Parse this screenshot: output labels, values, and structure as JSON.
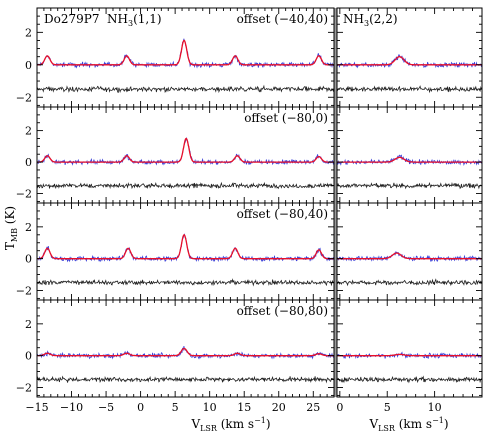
{
  "figure": {
    "source_label": "Do279P7",
    "ylabel_main": "T",
    "ylabel_sub": "MB",
    "ylabel_unit": " (K)",
    "xlabel_main": "V",
    "xlabel_sub": "LSR",
    "xlabel_unit": " (km s",
    "xlabel_exp": "−1",
    "xlabel_close": ")"
  },
  "colors": {
    "fit": "#e8102a",
    "data": "#3a3fd8",
    "residual": "#222222",
    "residual_tint": "#b03030",
    "divider": "#9a9a9a"
  },
  "chart_data": [
    {
      "type": "line",
      "panel": "offset (-40,40)",
      "column": "NH3(1,1)",
      "line_label": "NH3(1,1)",
      "annotation": "offset (−40,40)",
      "xlim": [
        -15,
        28
      ],
      "ylim": [
        -2.6,
        3.5
      ],
      "xticks": [
        -15,
        -10,
        -5,
        0,
        5,
        10,
        15,
        20,
        25
      ],
      "yticks": [
        -2,
        0,
        2
      ],
      "residual_offset": -1.5,
      "series": [
        {
          "values_kind": "gaussian_components",
          "components": [
            {
              "center": -13.5,
              "amplitude": 0.55,
              "fwhm": 0.9
            },
            {
              "center": -2.0,
              "amplitude": 0.55,
              "fwhm": 0.9
            },
            {
              "center": 6.3,
              "amplitude": 1.5,
              "fwhm": 0.9
            },
            {
              "center": 13.7,
              "amplitude": 0.55,
              "fwhm": 0.9
            },
            {
              "center": 25.8,
              "amplitude": 0.55,
              "fwhm": 0.9
            }
          ]
        }
      ]
    },
    {
      "type": "line",
      "panel": "offset (-40,40)",
      "column": "NH3(2,2)",
      "line_label": "NH3(2,2)",
      "xlim": [
        -0.3,
        15
      ],
      "ylim": [
        -2.6,
        3.5
      ],
      "xticks": [
        0,
        5,
        10
      ],
      "yticks": [
        -2,
        0,
        2
      ],
      "residual_offset": -1.5,
      "series": [
        {
          "values_kind": "gaussian_components",
          "components": [
            {
              "center": 6.3,
              "amplitude": 0.5,
              "fwhm": 1.1
            }
          ]
        }
      ]
    },
    {
      "type": "line",
      "panel": "offset (-80,0)",
      "column": "NH3(1,1)",
      "annotation": "offset (−80,0)",
      "xlim": [
        -15,
        28
      ],
      "ylim": [
        -2.6,
        3.5
      ],
      "xticks": [
        -15,
        -10,
        -5,
        0,
        5,
        10,
        15,
        20,
        25
      ],
      "yticks": [
        -2,
        0,
        2
      ],
      "residual_offset": -1.5,
      "series": [
        {
          "values_kind": "gaussian_components",
          "components": [
            {
              "center": -13.5,
              "amplitude": 0.4,
              "fwhm": 0.9
            },
            {
              "center": -2.0,
              "amplitude": 0.4,
              "fwhm": 0.9
            },
            {
              "center": 6.6,
              "amplitude": 1.5,
              "fwhm": 0.9
            },
            {
              "center": 14.0,
              "amplitude": 0.4,
              "fwhm": 0.9
            },
            {
              "center": 25.8,
              "amplitude": 0.35,
              "fwhm": 0.9
            }
          ]
        }
      ]
    },
    {
      "type": "line",
      "panel": "offset (-80,0)",
      "column": "NH3(2,2)",
      "xlim": [
        -0.3,
        15
      ],
      "ylim": [
        -2.6,
        3.5
      ],
      "xticks": [
        0,
        5,
        10
      ],
      "yticks": [
        -2,
        0,
        2
      ],
      "residual_offset": -1.5,
      "series": [
        {
          "values_kind": "gaussian_components",
          "components": [
            {
              "center": 6.3,
              "amplitude": 0.3,
              "fwhm": 1.1
            }
          ]
        }
      ]
    },
    {
      "type": "line",
      "panel": "offset (-80,40)",
      "column": "NH3(1,1)",
      "annotation": "offset (−80,40)",
      "xlim": [
        -15,
        28
      ],
      "ylim": [
        -2.6,
        3.5
      ],
      "xticks": [
        -15,
        -10,
        -5,
        0,
        5,
        10,
        15,
        20,
        25
      ],
      "yticks": [
        -2,
        0,
        2
      ],
      "residual_offset": -1.5,
      "series": [
        {
          "values_kind": "gaussian_components",
          "components": [
            {
              "center": -13.5,
              "amplitude": 0.65,
              "fwhm": 0.9
            },
            {
              "center": -1.8,
              "amplitude": 0.65,
              "fwhm": 0.9
            },
            {
              "center": 6.3,
              "amplitude": 1.5,
              "fwhm": 0.9
            },
            {
              "center": 13.7,
              "amplitude": 0.65,
              "fwhm": 0.9
            },
            {
              "center": 25.8,
              "amplitude": 0.55,
              "fwhm": 0.9
            }
          ]
        }
      ]
    },
    {
      "type": "line",
      "panel": "offset (-80,40)",
      "column": "NH3(2,2)",
      "xlim": [
        -0.3,
        15
      ],
      "ylim": [
        -2.6,
        3.5
      ],
      "xticks": [
        0,
        5,
        10
      ],
      "yticks": [
        -2,
        0,
        2
      ],
      "residual_offset": -1.5,
      "series": [
        {
          "values_kind": "gaussian_components",
          "components": [
            {
              "center": 6.0,
              "amplitude": 0.35,
              "fwhm": 1.1
            }
          ]
        }
      ]
    },
    {
      "type": "line",
      "panel": "offset (-80,80)",
      "column": "NH3(1,1)",
      "annotation": "offset (−80,80)",
      "xlim": [
        -15,
        28
      ],
      "ylim": [
        -2.6,
        3.5
      ],
      "xticks": [
        -15,
        -10,
        -5,
        0,
        5,
        10,
        15,
        20,
        25
      ],
      "yticks": [
        -2,
        0,
        2
      ],
      "residual_offset": -1.5,
      "series": [
        {
          "values_kind": "gaussian_components",
          "components": [
            {
              "center": -13.5,
              "amplitude": 0.15,
              "fwhm": 1.0
            },
            {
              "center": -2.0,
              "amplitude": 0.15,
              "fwhm": 1.0
            },
            {
              "center": 6.3,
              "amplitude": 0.45,
              "fwhm": 1.0
            },
            {
              "center": 14.0,
              "amplitude": 0.15,
              "fwhm": 1.0
            },
            {
              "center": 25.8,
              "amplitude": 0.12,
              "fwhm": 1.0
            }
          ]
        }
      ]
    },
    {
      "type": "line",
      "panel": "offset (-80,80)",
      "column": "NH3(2,2)",
      "xlim": [
        -0.3,
        15
      ],
      "ylim": [
        -2.6,
        3.5
      ],
      "xticks": [
        0,
        5,
        10
      ],
      "yticks": [
        -2,
        0,
        2
      ],
      "residual_offset": -1.5,
      "series": [
        {
          "values_kind": "gaussian_components",
          "components": [
            {
              "center": 6.3,
              "amplitude": 0.08,
              "fwhm": 1.1
            }
          ]
        }
      ]
    }
  ]
}
